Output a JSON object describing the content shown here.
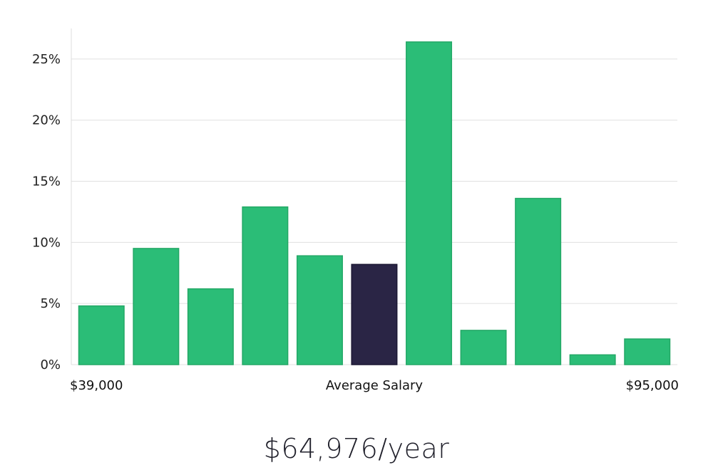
{
  "chart_data": {
    "type": "bar",
    "title": "",
    "xlabel": "Average Salary",
    "ylabel": "",
    "ylim": [
      0,
      27.5
    ],
    "yticks": [
      "0%",
      "5%",
      "10%",
      "15%",
      "20%",
      "25%"
    ],
    "ytick_values": [
      0,
      5,
      10,
      15,
      20,
      25
    ],
    "x_min_label": "$39,000",
    "x_max_label": "$95,000",
    "values": [
      4.8,
      9.5,
      6.2,
      12.9,
      8.9,
      8.2,
      26.4,
      2.8,
      13.6,
      0.8,
      2.1
    ],
    "highlight_index": 5,
    "colors": {
      "bar": "#2bbd77",
      "bar_stroke": "#23a866",
      "highlight": "#2a2545",
      "grid": "#e0e0e0",
      "axis": "#dddddd"
    },
    "grid": true
  },
  "salary": {
    "value": "$64,976/year"
  }
}
